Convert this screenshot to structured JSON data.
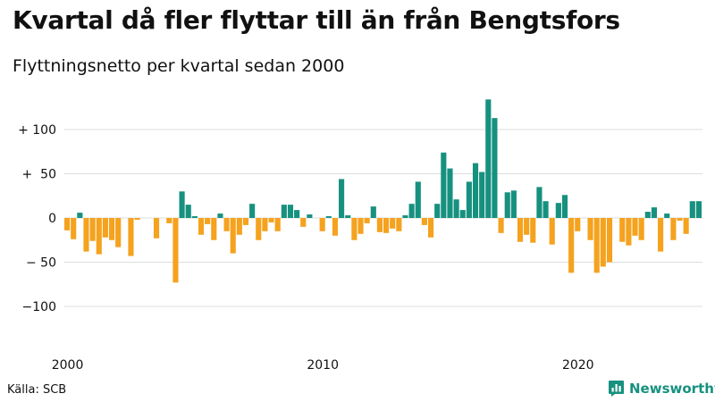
{
  "header": {
    "title": "Kvartal då fler flyttar till än från Bengtsfors",
    "subtitle": "Flyttningsnetto per kvartal sedan 2000"
  },
  "footer": {
    "source": "Källa: SCB",
    "brand": "Newsworthy"
  },
  "colors": {
    "positive": "#17917f",
    "negative": "#f5a21f",
    "grid": "#dddddd",
    "brand": "#16917f"
  },
  "chart_data": {
    "type": "bar",
    "title": "Kvartal då fler flyttar till än från Bengtsfors",
    "subtitle": "Flyttningsnetto per kvartal sedan 2000",
    "xlabel": "",
    "ylabel": "",
    "ylim": [
      -145,
      145
    ],
    "grid": true,
    "yticks": [
      {
        "value": 100,
        "label": "+ 100"
      },
      {
        "value": 50,
        "label": "+  50"
      },
      {
        "value": 0,
        "label": "0"
      },
      {
        "value": -50,
        "label": "− 50"
      },
      {
        "value": -100,
        "label": "−100"
      }
    ],
    "xticks": [
      {
        "index": 0,
        "label": "2000"
      },
      {
        "index": 40,
        "label": "2010"
      },
      {
        "index": 80,
        "label": "2020"
      }
    ],
    "values": [
      -14,
      -24,
      6,
      -38,
      -26,
      -41,
      -22,
      -25,
      -33,
      0,
      -43,
      -2,
      0,
      0,
      -23,
      0,
      -6,
      -73,
      30,
      15,
      2,
      -19,
      -7,
      -25,
      5,
      -15,
      -40,
      -19,
      -8,
      16,
      -25,
      -15,
      -5,
      -15,
      15,
      15,
      9,
      -10,
      4,
      0,
      -15,
      2,
      -20,
      44,
      3,
      -25,
      -18,
      -6,
      13,
      -16,
      -17,
      -12,
      -15,
      3,
      16,
      41,
      -8,
      -22,
      16,
      74,
      56,
      21,
      9,
      41,
      62,
      52,
      134,
      113,
      -17,
      29,
      31,
      -27,
      -19,
      -28,
      35,
      19,
      -30,
      17,
      26,
      -62,
      -15,
      0,
      -25,
      -62,
      -55,
      -50,
      0,
      -27,
      -31,
      -20,
      -25,
      7,
      12,
      -38,
      5,
      -25,
      -3,
      -18,
      19,
      19
    ]
  }
}
